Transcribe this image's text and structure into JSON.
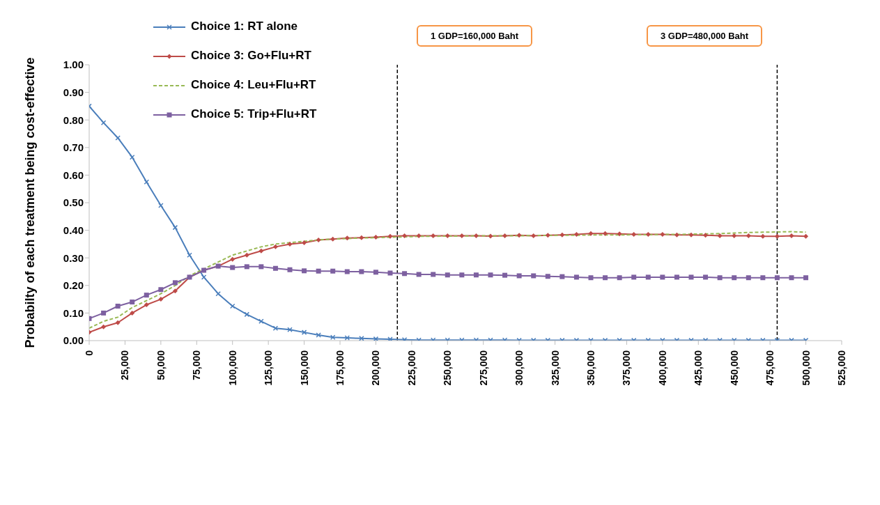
{
  "chart_data": {
    "type": "line",
    "ylabel": "Probabilty of each treatment being cost-effective",
    "x": [
      0,
      10000,
      20000,
      30000,
      40000,
      50000,
      60000,
      70000,
      80000,
      90000,
      100000,
      110000,
      120000,
      130000,
      140000,
      150000,
      160000,
      170000,
      180000,
      190000,
      200000,
      210000,
      220000,
      230000,
      240000,
      250000,
      260000,
      270000,
      280000,
      290000,
      300000,
      310000,
      320000,
      330000,
      340000,
      350000,
      360000,
      370000,
      380000,
      390000,
      400000,
      410000,
      420000,
      430000,
      440000,
      450000,
      460000,
      470000,
      480000,
      490000,
      500000
    ],
    "series": [
      {
        "name": "Choice 1: RT alone",
        "color": "#4a7ebb",
        "marker": "cross",
        "line_style": "solid",
        "values": [
          0.85,
          0.79,
          0.735,
          0.665,
          0.575,
          0.49,
          0.41,
          0.31,
          0.23,
          0.17,
          0.125,
          0.095,
          0.07,
          0.045,
          0.04,
          0.03,
          0.02,
          0.012,
          0.01,
          0.008,
          0.006,
          0.005,
          0.003,
          0.002,
          0.002,
          0.002,
          0.002,
          0.002,
          0.002,
          0.002,
          0.001,
          0.001,
          0.001,
          0.001,
          0.001,
          0.001,
          0.001,
          0.001,
          0.001,
          0.001,
          0.001,
          0.001,
          0.001,
          0.001,
          0.001,
          0.001,
          0.001,
          0.001,
          0.001,
          0.001,
          0.001
        ]
      },
      {
        "name": "Choice 3: Go+Flu+RT",
        "color": "#be4b48",
        "marker": "diamond",
        "line_style": "solid",
        "values": [
          0.03,
          0.05,
          0.065,
          0.1,
          0.13,
          0.15,
          0.18,
          0.23,
          0.255,
          0.27,
          0.295,
          0.31,
          0.325,
          0.34,
          0.35,
          0.355,
          0.365,
          0.368,
          0.372,
          0.373,
          0.375,
          0.378,
          0.38,
          0.38,
          0.38,
          0.38,
          0.38,
          0.38,
          0.379,
          0.38,
          0.382,
          0.38,
          0.382,
          0.383,
          0.385,
          0.388,
          0.388,
          0.387,
          0.385,
          0.385,
          0.385,
          0.383,
          0.383,
          0.382,
          0.38,
          0.38,
          0.38,
          0.378,
          0.378,
          0.38,
          0.378
        ]
      },
      {
        "name": "Choice 4: Leu+Flu+RT",
        "color": "#98b954",
        "marker": "none",
        "line_style": "dashed",
        "values": [
          0.045,
          0.07,
          0.085,
          0.12,
          0.145,
          0.17,
          0.2,
          0.235,
          0.26,
          0.285,
          0.31,
          0.325,
          0.34,
          0.35,
          0.355,
          0.36,
          0.365,
          0.368,
          0.37,
          0.372,
          0.373,
          0.375,
          0.376,
          0.378,
          0.378,
          0.379,
          0.379,
          0.38,
          0.38,
          0.38,
          0.38,
          0.381,
          0.381,
          0.382,
          0.382,
          0.383,
          0.383,
          0.383,
          0.384,
          0.384,
          0.385,
          0.385,
          0.386,
          0.387,
          0.388,
          0.39,
          0.392,
          0.393,
          0.394,
          0.395,
          0.393
        ]
      },
      {
        "name": "Choice 5: Trip+Flu+RT",
        "color": "#7d60a0",
        "marker": "square",
        "line_style": "solid",
        "values": [
          0.08,
          0.1,
          0.125,
          0.14,
          0.165,
          0.185,
          0.21,
          0.23,
          0.255,
          0.27,
          0.265,
          0.268,
          0.268,
          0.262,
          0.257,
          0.253,
          0.252,
          0.252,
          0.25,
          0.25,
          0.248,
          0.245,
          0.243,
          0.24,
          0.24,
          0.238,
          0.238,
          0.238,
          0.238,
          0.237,
          0.235,
          0.235,
          0.233,
          0.232,
          0.23,
          0.228,
          0.228,
          0.228,
          0.23,
          0.23,
          0.23,
          0.23,
          0.23,
          0.23,
          0.228,
          0.228,
          0.228,
          0.228,
          0.228,
          0.228,
          0.228
        ]
      }
    ],
    "xlim": [
      0,
      525000
    ],
    "xticks": [
      0,
      {
        "value": 25000,
        "label": "25,000"
      },
      {
        "value": 50000,
        "label": "50,000"
      },
      {
        "value": 75000,
        "label": "75,000"
      },
      {
        "value": 100000,
        "label": "100,000"
      },
      {
        "value": 125000,
        "label": "125,000"
      },
      {
        "value": 150000,
        "label": "150,000"
      },
      {
        "value": 175000,
        "label": "175,000"
      },
      {
        "value": 200000,
        "label": "200,000"
      },
      {
        "value": 225000,
        "label": "225,000"
      },
      {
        "value": 250000,
        "label": "250,000"
      },
      {
        "value": 275000,
        "label": "275,000"
      },
      {
        "value": 300000,
        "label": "300,000"
      },
      {
        "value": 325000,
        "label": "325,000"
      },
      {
        "value": 350000,
        "label": "350,000"
      },
      {
        "value": 375000,
        "label": "375,000"
      },
      {
        "value": 400000,
        "label": "400,000"
      },
      {
        "value": 425000,
        "label": "425,000"
      },
      {
        "value": 450000,
        "label": "450,000"
      },
      {
        "value": 475000,
        "label": "475,000"
      },
      {
        "value": 500000,
        "label": "500,000"
      },
      {
        "value": 525000,
        "label": "525,000"
      }
    ],
    "ylim": [
      0,
      1
    ],
    "yticks": [
      {
        "value": 0,
        "label": "0.00"
      },
      {
        "value": 0.1,
        "label": "0.10"
      },
      {
        "value": 0.2,
        "label": "0.20"
      },
      {
        "value": 0.3,
        "label": "0.30"
      },
      {
        "value": 0.4,
        "label": "0.40"
      },
      {
        "value": 0.5,
        "label": "0.50"
      },
      {
        "value": 0.6,
        "label": "0.60"
      },
      {
        "value": 0.7,
        "label": "0.70"
      },
      {
        "value": 0.8,
        "label": "0.80"
      },
      {
        "value": 0.9,
        "label": "0.90"
      },
      {
        "value": 1,
        "label": "1.00"
      }
    ],
    "ref_lines": [
      {
        "axis": "x",
        "value": 215000,
        "color": "#000000",
        "line_style": "dashed"
      },
      {
        "axis": "x",
        "value": 480000,
        "color": "#000000",
        "line_style": "dashed"
      }
    ],
    "annotations": [
      "1 GDP=160,000 Baht",
      "3 GDP=480,000 Baht"
    ],
    "legend": "top left"
  }
}
